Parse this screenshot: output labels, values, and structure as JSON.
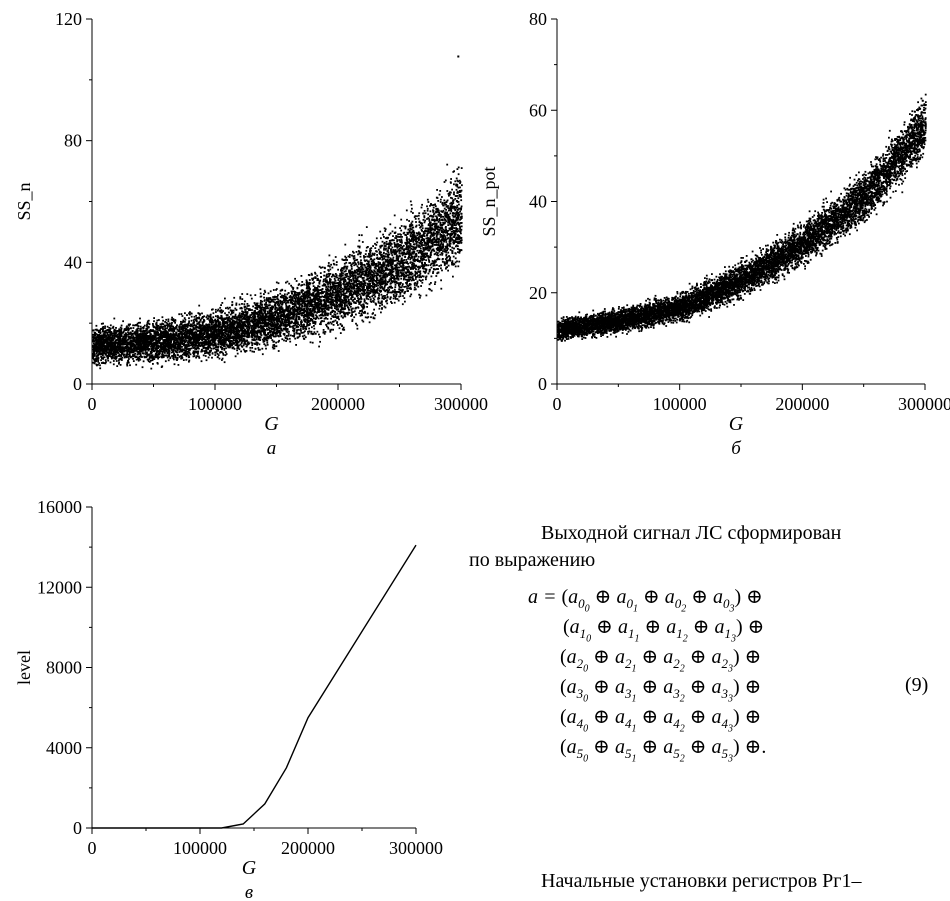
{
  "charts": [
    {
      "id": "a",
      "ylabel": "SS_n",
      "xlabel": "G",
      "caption": "а",
      "x_ticks": [
        "0",
        "100000",
        "200000",
        "300000"
      ],
      "y_ticks": [
        "0",
        "40",
        "80",
        "120"
      ]
    },
    {
      "id": "b",
      "ylabel": "SS_n_pot",
      "xlabel": "G",
      "caption": "б",
      "x_ticks": [
        "0",
        "100000",
        "200000",
        "300000"
      ],
      "y_ticks": [
        "0",
        "20",
        "40",
        "60",
        "80"
      ]
    },
    {
      "id": "c",
      "ylabel": "level",
      "xlabel": "G",
      "caption": "в",
      "x_ticks": [
        "0",
        "100000",
        "200000",
        "300000"
      ],
      "y_ticks": [
        "0",
        "4000",
        "8000",
        "12000",
        "16000"
      ]
    }
  ],
  "chart_data": [
    {
      "type": "scatter",
      "xlabel": "G",
      "ylabel": "SS_n",
      "xlim": [
        0,
        300000
      ],
      "ylim": [
        0,
        120
      ],
      "trend": {
        "x": [
          0,
          50000,
          100000,
          150000,
          200000,
          250000,
          300000
        ],
        "y_center": [
          13,
          14,
          17,
          22,
          30,
          40,
          55
        ],
        "y_spread": [
          8,
          9,
          10,
          12,
          15,
          18,
          22
        ]
      },
      "outlier_max": [
        297000,
        108
      ]
    },
    {
      "type": "scatter",
      "xlabel": "G",
      "ylabel": "SS_n_pot",
      "xlim": [
        0,
        300000
      ],
      "ylim": [
        0,
        80
      ],
      "trend": {
        "x": [
          0,
          50000,
          100000,
          150000,
          200000,
          250000,
          300000
        ],
        "y_center": [
          12,
          14,
          17,
          23,
          31,
          41,
          57
        ],
        "y_spread": [
          3,
          3.5,
          4,
          5,
          6,
          7,
          9
        ]
      }
    },
    {
      "type": "line",
      "xlabel": "G",
      "ylabel": "level",
      "xlim": [
        0,
        300000
      ],
      "ylim": [
        0,
        16000
      ],
      "x": [
        0,
        100000,
        120000,
        140000,
        160000,
        180000,
        200000,
        250000,
        300000
      ],
      "y": [
        0,
        0,
        0,
        200,
        1200,
        3000,
        5500,
        9800,
        14100
      ]
    }
  ],
  "text": {
    "para1_line1": "Выходной сигнал ЛС сформирован",
    "para1_line2": "по выражению",
    "eq_number": "(9)",
    "para2": "Начальные установки регистров Рг1–"
  },
  "equation": {
    "lhs": "a =",
    "row_indices": [
      "0",
      "1",
      "2",
      "3",
      "4",
      "5"
    ],
    "sub_indices": [
      "0",
      "1",
      "2",
      "3"
    ],
    "op_xor": "⊕",
    "open_paren": "(",
    "close_paren": ")",
    "last_end": "."
  }
}
